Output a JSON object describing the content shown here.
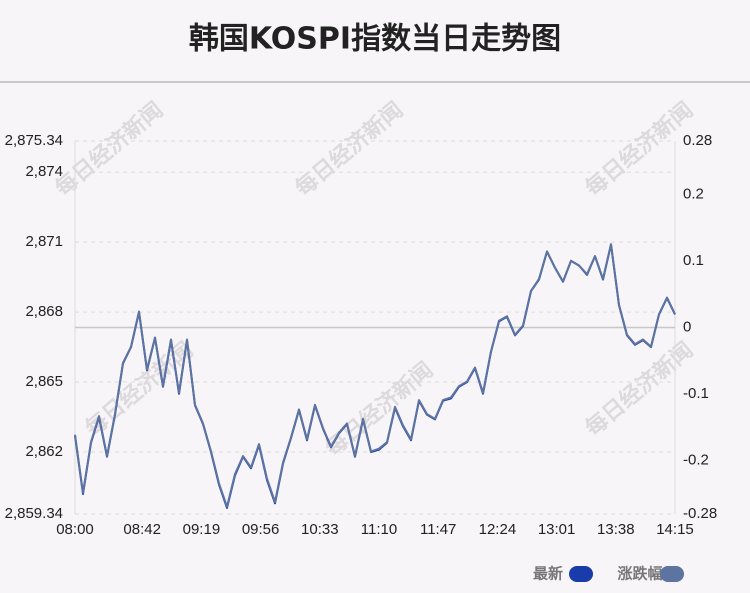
{
  "chart_data": {
    "type": "line",
    "title": "韩国KOSPI指数当日走势图",
    "watermark": "每日经济新闻",
    "x": [
      "08:00",
      "08:05",
      "08:10",
      "08:15",
      "08:20",
      "08:25",
      "08:30",
      "08:35",
      "08:40",
      "08:45",
      "08:50",
      "08:55",
      "09:00",
      "09:05",
      "09:10",
      "09:15",
      "09:20",
      "09:25",
      "09:30",
      "09:35",
      "09:40",
      "09:45",
      "09:50",
      "09:55",
      "10:00",
      "10:05",
      "10:10",
      "10:15",
      "10:20",
      "10:25",
      "10:30",
      "10:35",
      "10:40",
      "10:45",
      "10:50",
      "10:55",
      "11:00",
      "11:05",
      "11:10",
      "11:15",
      "11:20",
      "11:25",
      "11:30",
      "11:35",
      "11:40",
      "11:45",
      "11:50",
      "11:55",
      "12:00",
      "12:05",
      "12:10",
      "12:15",
      "12:20",
      "12:25",
      "12:30",
      "12:35",
      "12:40",
      "12:45",
      "12:50",
      "12:55",
      "13:00",
      "13:05",
      "13:10",
      "13:15",
      "13:20",
      "13:25",
      "13:30",
      "13:35",
      "13:40",
      "13:45",
      "13:50",
      "13:55",
      "14:00",
      "14:05",
      "14:10",
      "14:15"
    ],
    "xlim": [
      "08:00",
      "14:15"
    ],
    "xticks": [
      "08:00",
      "08:42",
      "09:19",
      "09:56",
      "10:33",
      "11:10",
      "11:47",
      "12:24",
      "13:01",
      "13:38",
      "14:15"
    ],
    "series": [
      {
        "name": "最新",
        "color": "#1a3caa",
        "values": [
          2862.7,
          2860.2,
          2862.4,
          2863.5,
          2861.8,
          2863.6,
          2865.8,
          2866.5,
          2868.0,
          2865.5,
          2866.9,
          2864.8,
          2866.8,
          2864.5,
          2866.8,
          2864.0,
          2863.2,
          2862.0,
          2860.6,
          2859.6,
          2861.0,
          2861.8,
          2861.3,
          2862.3,
          2860.8,
          2859.8,
          2861.5,
          2862.6,
          2863.8,
          2862.5,
          2864.0,
          2863.0,
          2862.2,
          2862.8,
          2863.2,
          2861.8,
          2863.4,
          2862.0,
          2862.1,
          2862.4,
          2863.9,
          2863.1,
          2862.5,
          2864.2,
          2863.6,
          2863.4,
          2864.2,
          2864.3,
          2864.8,
          2865.0,
          2865.6,
          2864.5,
          2866.3,
          2867.6,
          2867.8,
          2867.0,
          2867.4,
          2868.9,
          2869.4,
          2870.6,
          2869.9,
          2869.3,
          2870.2,
          2870.0,
          2869.6,
          2870.4,
          2869.4,
          2870.9,
          2868.3,
          2867.0,
          2866.6,
          2866.8,
          2866.5,
          2867.9,
          2868.6,
          2867.9
        ]
      },
      {
        "name": "涨跌幅",
        "color": "#5d73a0",
        "axis": "y2",
        "values": [
          -0.161,
          -0.248,
          -0.172,
          -0.133,
          -0.193,
          -0.13,
          -0.053,
          -0.029,
          0.024,
          -0.063,
          -0.015,
          -0.088,
          -0.018,
          -0.098,
          -0.018,
          -0.116,
          -0.144,
          -0.186,
          -0.234,
          -0.269,
          -0.22,
          -0.193,
          -0.21,
          -0.175,
          -0.227,
          -0.262,
          -0.203,
          -0.165,
          -0.123,
          -0.168,
          -0.116,
          -0.151,
          -0.179,
          -0.158,
          -0.144,
          -0.193,
          -0.137,
          -0.186,
          -0.182,
          -0.172,
          -0.119,
          -0.147,
          -0.168,
          -0.109,
          -0.13,
          -0.137,
          -0.109,
          -0.105,
          -0.088,
          -0.081,
          -0.06,
          -0.098,
          -0.036,
          0.01,
          0.017,
          -0.011,
          0.003,
          0.055,
          0.073,
          0.114,
          0.09,
          0.069,
          0.1,
          0.093,
          0.08,
          0.107,
          0.073,
          0.125,
          0.034,
          -0.011,
          -0.025,
          -0.018,
          -0.029,
          0.02,
          0.045,
          0.02
        ]
      }
    ],
    "ylim": [
      2859.34,
      2875.34
    ],
    "yticks": [
      {
        "value": 2875.34,
        "label": "2,875.34"
      },
      {
        "value": 2874,
        "label": "2,874"
      },
      {
        "value": 2871,
        "label": "2,871"
      },
      {
        "value": 2868,
        "label": "2,868"
      },
      {
        "value": 2865,
        "label": "2,865"
      },
      {
        "value": 2862,
        "label": "2,862"
      },
      {
        "value": 2859.34,
        "label": "2,859.34"
      }
    ],
    "y2lim": [
      -0.28,
      0.28
    ],
    "y2ticks": [
      0.28,
      0.2,
      0.1,
      0,
      -0.1,
      -0.2,
      -0.28
    ],
    "grid": true,
    "legend": "bottom-right"
  }
}
